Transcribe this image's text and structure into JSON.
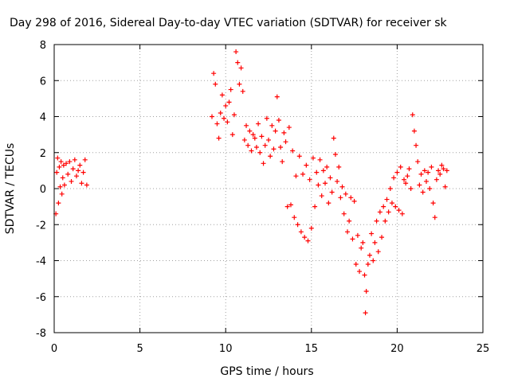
{
  "chart_data": {
    "type": "scatter",
    "title": "Day 298 of 2016, Sidereal Day-to-day VTEC variation (SDTVAR) for receiver sk",
    "xlabel": "GPS time / hours",
    "ylabel": "SDTVAR / TECUs",
    "xlim": [
      0,
      25
    ],
    "ylim": [
      -8,
      8
    ],
    "x_ticks": [
      "0",
      "5",
      "10",
      "15",
      "20",
      "25"
    ],
    "y_ticks": [
      "-8",
      "-6",
      "-4",
      "-2",
      "0",
      "2",
      "4",
      "6",
      "8"
    ],
    "grid": true,
    "marker": "+",
    "color": "#ff0000",
    "series": [
      {
        "points": [
          [
            0.1,
            -1.4
          ],
          [
            0.15,
            0.9
          ],
          [
            0.2,
            1.7
          ],
          [
            0.25,
            -0.8
          ],
          [
            0.3,
            1.2
          ],
          [
            0.35,
            0.1
          ],
          [
            0.4,
            1.5
          ],
          [
            0.45,
            -0.3
          ],
          [
            0.5,
            0.6
          ],
          [
            0.55,
            1.3
          ],
          [
            0.6,
            0.2
          ],
          [
            0.7,
            1.4
          ],
          [
            0.8,
            0.8
          ],
          [
            0.9,
            1.5
          ],
          [
            1.0,
            0.4
          ],
          [
            1.1,
            1.1
          ],
          [
            1.2,
            1.6
          ],
          [
            1.3,
            0.7
          ],
          [
            1.4,
            1.0
          ],
          [
            1.5,
            1.3
          ],
          [
            1.6,
            0.3
          ],
          [
            1.7,
            0.9
          ],
          [
            1.8,
            1.6
          ],
          [
            1.9,
            0.2
          ],
          [
            9.2,
            4.0
          ],
          [
            9.3,
            6.4
          ],
          [
            9.4,
            5.8
          ],
          [
            9.5,
            3.6
          ],
          [
            9.6,
            2.8
          ],
          [
            9.7,
            4.2
          ],
          [
            9.8,
            5.2
          ],
          [
            9.9,
            3.9
          ],
          [
            10.0,
            4.6
          ],
          [
            10.1,
            3.7
          ],
          [
            10.2,
            4.8
          ],
          [
            10.3,
            5.5
          ],
          [
            10.4,
            3.0
          ],
          [
            10.5,
            4.1
          ],
          [
            10.6,
            7.6
          ],
          [
            10.7,
            7.0
          ],
          [
            10.8,
            5.8
          ],
          [
            10.9,
            6.7
          ],
          [
            11.0,
            5.4
          ],
          [
            11.1,
            2.7
          ],
          [
            11.2,
            3.5
          ],
          [
            11.3,
            2.4
          ],
          [
            11.4,
            3.2
          ],
          [
            11.5,
            2.1
          ],
          [
            11.6,
            3.0
          ],
          [
            11.7,
            2.8
          ],
          [
            11.8,
            2.3
          ],
          [
            11.9,
            3.6
          ],
          [
            12.0,
            2.0
          ],
          [
            12.1,
            2.9
          ],
          [
            12.2,
            1.4
          ],
          [
            12.3,
            2.4
          ],
          [
            12.4,
            3.9
          ],
          [
            12.5,
            2.7
          ],
          [
            12.6,
            1.8
          ],
          [
            12.7,
            3.5
          ],
          [
            12.8,
            2.2
          ],
          [
            12.9,
            3.2
          ],
          [
            13.0,
            5.1
          ],
          [
            13.1,
            3.8
          ],
          [
            13.2,
            2.3
          ],
          [
            13.3,
            1.5
          ],
          [
            13.4,
            3.1
          ],
          [
            13.5,
            2.6
          ],
          [
            13.6,
            -1.0
          ],
          [
            13.7,
            3.4
          ],
          [
            13.8,
            -0.9
          ],
          [
            13.9,
            2.1
          ],
          [
            14.0,
            -1.6
          ],
          [
            14.1,
            0.7
          ],
          [
            14.2,
            -2.0
          ],
          [
            14.3,
            1.8
          ],
          [
            14.4,
            -2.4
          ],
          [
            14.5,
            0.8
          ],
          [
            14.6,
            -2.7
          ],
          [
            14.7,
            1.3
          ],
          [
            14.8,
            -2.9
          ],
          [
            14.9,
            0.5
          ],
          [
            15.0,
            -2.2
          ],
          [
            15.1,
            1.7
          ],
          [
            15.2,
            -1.0
          ],
          [
            15.3,
            0.9
          ],
          [
            15.4,
            0.2
          ],
          [
            15.5,
            1.6
          ],
          [
            15.6,
            -0.4
          ],
          [
            15.7,
            1.0
          ],
          [
            15.8,
            0.3
          ],
          [
            15.9,
            1.2
          ],
          [
            16.0,
            -0.8
          ],
          [
            16.1,
            0.6
          ],
          [
            16.2,
            -0.2
          ],
          [
            16.3,
            2.8
          ],
          [
            16.4,
            1.9
          ],
          [
            16.5,
            0.4
          ],
          [
            16.6,
            1.2
          ],
          [
            16.7,
            -0.5
          ],
          [
            16.8,
            0.1
          ],
          [
            16.9,
            -1.4
          ],
          [
            17.0,
            -0.3
          ],
          [
            17.1,
            -2.4
          ],
          [
            17.2,
            -1.8
          ],
          [
            17.3,
            -0.5
          ],
          [
            17.4,
            -2.8
          ],
          [
            17.5,
            -0.7
          ],
          [
            17.6,
            -4.2
          ],
          [
            17.7,
            -2.6
          ],
          [
            17.8,
            -4.6
          ],
          [
            17.9,
            -3.3
          ],
          [
            18.0,
            -3.0
          ],
          [
            18.1,
            -4.8
          ],
          [
            18.15,
            -6.9
          ],
          [
            18.2,
            -5.7
          ],
          [
            18.3,
            -4.2
          ],
          [
            18.4,
            -3.7
          ],
          [
            18.5,
            -2.5
          ],
          [
            18.6,
            -4.0
          ],
          [
            18.7,
            -3.0
          ],
          [
            18.8,
            -1.8
          ],
          [
            18.9,
            -3.5
          ],
          [
            19.0,
            -1.3
          ],
          [
            19.1,
            -2.7
          ],
          [
            19.2,
            -1.0
          ],
          [
            19.3,
            -1.8
          ],
          [
            19.4,
            -0.6
          ],
          [
            19.5,
            -1.3
          ],
          [
            19.6,
            0.0
          ],
          [
            19.7,
            -0.8
          ],
          [
            19.8,
            0.6
          ],
          [
            19.9,
            -1.0
          ],
          [
            20.0,
            0.9
          ],
          [
            20.1,
            -1.2
          ],
          [
            20.2,
            1.2
          ],
          [
            20.3,
            -1.4
          ],
          [
            20.4,
            0.5
          ],
          [
            20.5,
            0.3
          ],
          [
            20.6,
            0.7
          ],
          [
            20.7,
            1.1
          ],
          [
            20.8,
            0.0
          ],
          [
            20.9,
            4.1
          ],
          [
            21.0,
            3.2
          ],
          [
            21.1,
            2.4
          ],
          [
            21.2,
            1.5
          ],
          [
            21.3,
            0.2
          ],
          [
            21.4,
            0.8
          ],
          [
            21.5,
            -0.2
          ],
          [
            21.6,
            1.0
          ],
          [
            21.7,
            0.4
          ],
          [
            21.8,
            0.9
          ],
          [
            21.9,
            0.0
          ],
          [
            22.0,
            1.2
          ],
          [
            22.1,
            -0.8
          ],
          [
            22.2,
            -1.6
          ],
          [
            22.3,
            0.5
          ],
          [
            22.4,
            1.0
          ],
          [
            22.5,
            0.8
          ],
          [
            22.6,
            1.3
          ],
          [
            22.7,
            1.1
          ],
          [
            22.8,
            0.1
          ],
          [
            22.9,
            1.0
          ]
        ]
      }
    ]
  }
}
